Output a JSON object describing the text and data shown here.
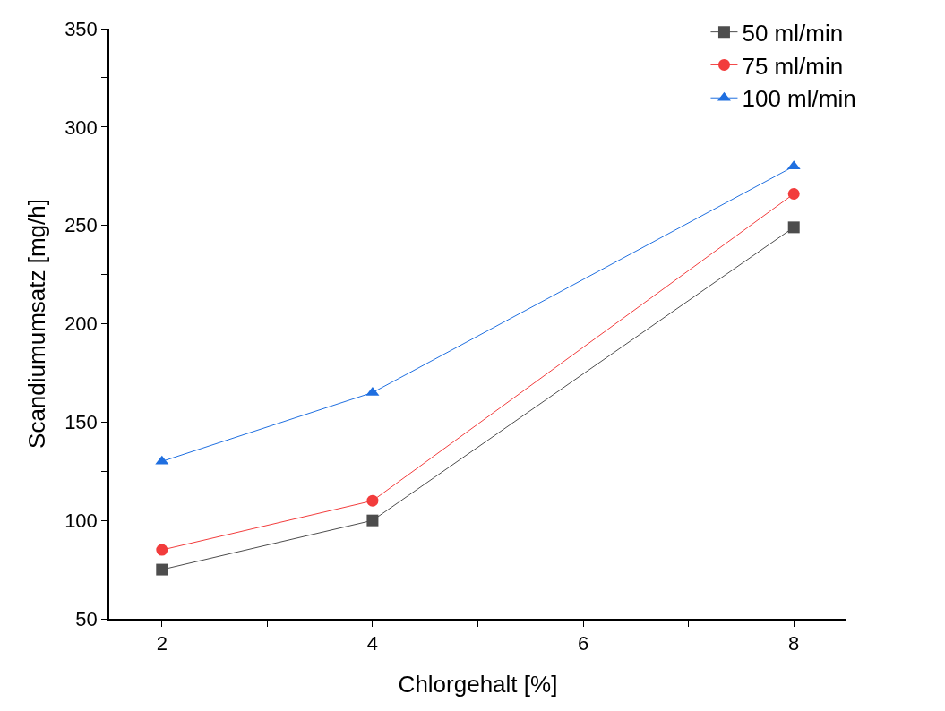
{
  "chart_data": {
    "type": "line",
    "xlabel": "Chlorgehalt [%]",
    "ylabel": "Scandiumumsatz [mg/h]",
    "x": [
      2,
      4,
      8
    ],
    "series": [
      {
        "name": "50 ml/min",
        "color": "#4d4d4d",
        "marker": "square",
        "values": [
          75,
          100,
          249
        ]
      },
      {
        "name": "75 ml/min",
        "color": "#f23c3c",
        "marker": "circle",
        "values": [
          85,
          110,
          266
        ]
      },
      {
        "name": "100 ml/min",
        "color": "#1f6fe0",
        "marker": "triangle",
        "values": [
          130,
          165,
          280
        ]
      }
    ],
    "xlim": [
      1.5,
      8.5
    ],
    "xticks": [
      2,
      {
        "value": 3,
        "label": null
      },
      4,
      {
        "value": 5,
        "label": null
      },
      6,
      {
        "value": 7,
        "label": null
      },
      8
    ],
    "ylim": [
      50,
      350
    ],
    "yticks": [
      50,
      {
        "value": 75,
        "label": null
      },
      100,
      {
        "value": 125,
        "label": null
      },
      150,
      {
        "value": 175,
        "label": null
      },
      200,
      {
        "value": 225,
        "label": null
      },
      250,
      {
        "value": 275,
        "label": null
      },
      300,
      {
        "value": 325,
        "label": null
      },
      350
    ],
    "grid": false,
    "legend": "top right",
    "line_style": "solid"
  }
}
